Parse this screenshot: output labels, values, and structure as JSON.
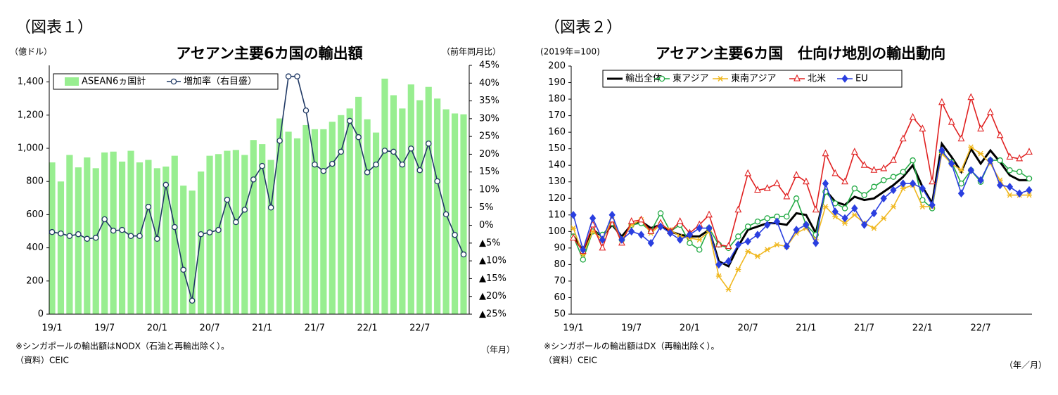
{
  "chart_data": [
    {
      "type": "combo",
      "figure_label": "（図表１）",
      "title": "アセアン主要6カ国の輸出額",
      "y_label": "（億ドル）",
      "y2_label": "（前年同月比）",
      "x_label": "（年月）",
      "notes": [
        "※シンガポールの輸出額はNODX（石油と再輸出除く）。",
        "（資料）CEIC"
      ],
      "categories": [
        "19/1",
        null,
        null,
        null,
        null,
        null,
        "19/7",
        null,
        null,
        null,
        null,
        null,
        "20/1",
        null,
        null,
        null,
        null,
        null,
        "20/7",
        null,
        null,
        null,
        null,
        null,
        "21/1",
        null,
        null,
        null,
        null,
        null,
        "21/7",
        null,
        null,
        null,
        null,
        null,
        "22/1",
        null,
        null,
        null,
        null,
        null,
        "22/7",
        null,
        null,
        null,
        null,
        null
      ],
      "series": [
        {
          "name": "ASEAN6ヵ国計",
          "type": "bar",
          "color": "#98ee90",
          "values": [
            915,
            800,
            960,
            885,
            945,
            880,
            975,
            980,
            920,
            985,
            915,
            930,
            880,
            890,
            955,
            775,
            745,
            860,
            955,
            965,
            985,
            990,
            960,
            1050,
            1025,
            930,
            1180,
            1100,
            1060,
            1140,
            1115,
            1115,
            1160,
            1200,
            1240,
            1310,
            1175,
            1095,
            1420,
            1320,
            1240,
            1385,
            1290,
            1370,
            1300,
            1235,
            1210,
            1205
          ]
        },
        {
          "name": "増加率（右目盛）",
          "type": "line",
          "axis": "y2",
          "color": "#1f3864",
          "marker": "circle",
          "values": [
            -1.9,
            -2.3,
            -3,
            -2.5,
            -3.8,
            -3.5,
            1.7,
            -1.5,
            -1.3,
            -3,
            -3,
            5.2,
            -3.8,
            11.4,
            -0.5,
            -12.5,
            -21.2,
            -2.5,
            -2,
            -1.3,
            7.2,
            0.9,
            4.4,
            12.9,
            16.7,
            5,
            23.8,
            41.9,
            41.9,
            32.3,
            17.1,
            15.3,
            17.3,
            20.7,
            29.4,
            24.8,
            14.9,
            17.1,
            21,
            20.7,
            17.1,
            21.6,
            15.5,
            23,
            12.4,
            3.1,
            -2.7,
            -8.2
          ]
        }
      ],
      "ylim": [
        0,
        1500
      ],
      "yticks": [
        0,
        200,
        400,
        600,
        800,
        {
          "value": 1000,
          "label": "1,000"
        },
        {
          "value": 1200,
          "label": "1,200"
        },
        {
          "value": 1400,
          "label": "1,400"
        }
      ],
      "y2lim": [
        -25,
        45
      ],
      "y2ticks": [
        {
          "value": -25,
          "label": "▲25%"
        },
        {
          "value": -20,
          "label": "▲20%"
        },
        {
          "value": -15,
          "label": "▲15%"
        },
        {
          "value": -10,
          "label": "▲10%"
        },
        {
          "value": -5,
          "label": "▲5%"
        },
        {
          "value": 0,
          "label": "0%"
        },
        {
          "value": 5,
          "label": "5%"
        },
        {
          "value": 10,
          "label": "10%"
        },
        {
          "value": 15,
          "label": "15%"
        },
        {
          "value": 20,
          "label": "20%"
        },
        {
          "value": 25,
          "label": "25%"
        },
        {
          "value": 30,
          "label": "30%"
        },
        {
          "value": 35,
          "label": "35%"
        },
        {
          "value": 40,
          "label": "40%"
        },
        {
          "value": 45,
          "label": "45%"
        }
      ]
    },
    {
      "type": "line",
      "figure_label": "（図表２）",
      "title": "アセアン主要6カ国　仕向け地別の輸出動向",
      "y_label": "(2019年=100)",
      "x_label": "（年／月）",
      "notes": [
        "※シンガポールの輸出額はDX（再輸出除く）。",
        "（資料）CEIC"
      ],
      "categories": [
        "19/1",
        null,
        null,
        null,
        null,
        null,
        "19/7",
        null,
        null,
        null,
        null,
        null,
        "20/1",
        null,
        null,
        null,
        null,
        null,
        "20/7",
        null,
        null,
        null,
        null,
        null,
        "21/1",
        null,
        null,
        null,
        null,
        null,
        "21/7",
        null,
        null,
        null,
        null,
        null,
        "22/1",
        null,
        null,
        null,
        null,
        null,
        "22/7",
        null,
        null,
        null,
        null,
        null
      ],
      "series": [
        {
          "name": "輸出全体",
          "color": "#000000",
          "marker": "none",
          "values": [
            98,
            88,
            101,
            97,
            104,
            97,
            104,
            106,
            102,
            104,
            100,
            98,
            97,
            97,
            101,
            82,
            79,
            91,
            101,
            103,
            105,
            105,
            104,
            111,
            110,
            99,
            125,
            118,
            116,
            121,
            119,
            120,
            124,
            128,
            133,
            140,
            127,
            117,
            153,
            145,
            136,
            150,
            141,
            149,
            142,
            134,
            131,
            131
          ]
        },
        {
          "name": "東アジア",
          "color": "#22aa44",
          "marker": "circle",
          "values": [
            97,
            83,
            100,
            98,
            105,
            95,
            104,
            105,
            100,
            111,
            100,
            104,
            93,
            89,
            102,
            92,
            90,
            97,
            103,
            106,
            108,
            109,
            109,
            120,
            104,
            98,
            124,
            117,
            114,
            126,
            122,
            127,
            131,
            133,
            136,
            143,
            119,
            114,
            148,
            142,
            129,
            137,
            130,
            143,
            143,
            137,
            136,
            132
          ]
        },
        {
          "name": "東南アジア",
          "color": "#f0b820",
          "marker": "star",
          "values": [
            102,
            86,
            100,
            95,
            107,
            95,
            104,
            107,
            99,
            104,
            101,
            97,
            96,
            95,
            100,
            73,
            65,
            77,
            88,
            85,
            89,
            92,
            91,
            99,
            102,
            95,
            115,
            109,
            105,
            110,
            105,
            102,
            108,
            115,
            126,
            128,
            115,
            115,
            147,
            141,
            137,
            151,
            147,
            141,
            131,
            122,
            122,
            122
          ]
        },
        {
          "name": "北米",
          "color": "#e02020",
          "marker": "triangle",
          "values": [
            96,
            88,
            104,
            90,
            107,
            93,
            106,
            107,
            100,
            105,
            100,
            106,
            99,
            104,
            110,
            92,
            91,
            113,
            135,
            125,
            126,
            129,
            121,
            134,
            130,
            113,
            147,
            135,
            130,
            148,
            140,
            137,
            138,
            143,
            156,
            169,
            162,
            130,
            178,
            166,
            156,
            181,
            162,
            172,
            158,
            145,
            144,
            148
          ]
        },
        {
          "name": "EU",
          "color": "#2a3fe0",
          "marker": "diamond",
          "values": [
            110,
            89,
            108,
            95,
            110,
            95,
            100,
            98,
            93,
            103,
            99,
            95,
            98,
            102,
            102,
            80,
            82,
            92,
            94,
            98,
            104,
            106,
            91,
            101,
            104,
            93,
            129,
            112,
            108,
            114,
            104,
            111,
            120,
            125,
            129,
            129,
            126,
            116,
            149,
            141,
            123,
            137,
            131,
            143,
            128,
            127,
            123,
            125
          ]
        }
      ],
      "ylim": [
        50,
        200
      ],
      "yticks": [
        50,
        60,
        70,
        80,
        90,
        100,
        110,
        120,
        130,
        140,
        150,
        160,
        170,
        180,
        190,
        200
      ]
    }
  ]
}
